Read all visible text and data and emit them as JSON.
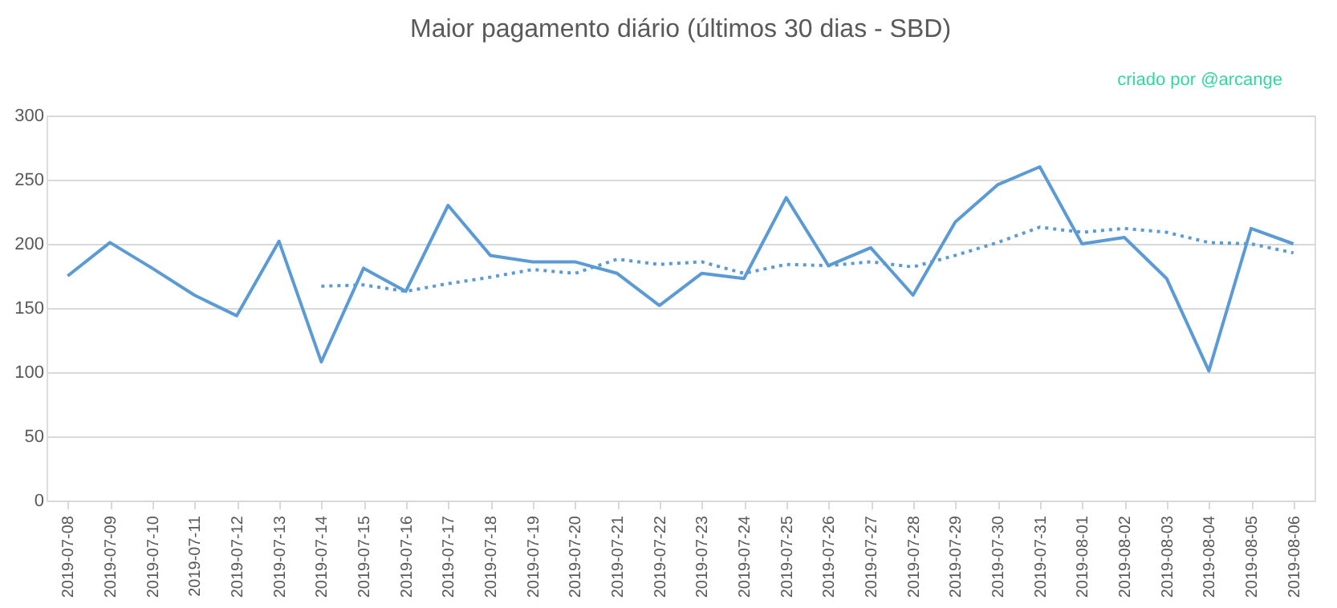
{
  "chart_data": {
    "type": "line",
    "title": "Maior pagamento diário (últimos 30 dias  - SBD)",
    "annotations": [
      "criado por @arcange"
    ],
    "categories": [
      "2019-07-08",
      "2019-07-09",
      "2019-07-10",
      "2019-07-11",
      "2019-07-12",
      "2019-07-13",
      "2019-07-14",
      "2019-07-15",
      "2019-07-16",
      "2019-07-17",
      "2019-07-18",
      "2019-07-19",
      "2019-07-20",
      "2019-07-21",
      "2019-07-22",
      "2019-07-23",
      "2019-07-24",
      "2019-07-25",
      "2019-07-26",
      "2019-07-27",
      "2019-07-28",
      "2019-07-29",
      "2019-07-30",
      "2019-07-31",
      "2019-08-01",
      "2019-08-02",
      "2019-08-03",
      "2019-08-04",
      "2019-08-05",
      "2019-08-06"
    ],
    "series": [
      {
        "color": "#5b9bd5",
        "line_style": "solid",
        "values": [
          175,
          201,
          181,
          160,
          144,
          202,
          108,
          181,
          163,
          230,
          191,
          186,
          186,
          177,
          152,
          177,
          173,
          236,
          183,
          197,
          160,
          217,
          246,
          260,
          200,
          205,
          173,
          101,
          212,
          200
        ]
      },
      {
        "color": "#5b9bd5",
        "line_style": "dotted",
        "values": [
          null,
          null,
          null,
          null,
          null,
          null,
          167,
          168,
          163,
          169,
          174,
          180,
          177,
          188,
          184,
          186,
          177,
          184,
          183,
          186,
          182,
          191,
          201,
          213,
          209,
          212,
          209,
          201,
          200,
          193
        ]
      }
    ],
    "ylim": [
      0,
      300
    ],
    "yticks": [
      0,
      50,
      100,
      150,
      200,
      250,
      300
    ],
    "grid": "y",
    "marker": "none"
  }
}
